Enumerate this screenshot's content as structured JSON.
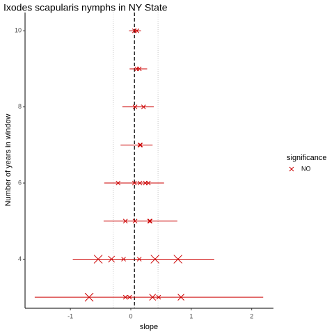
{
  "chart_data": {
    "type": "scatter",
    "title": "Ixodes scapularis nymphs in NY State",
    "x_label": "slope",
    "y_label": "Number of years in window",
    "legend_title": "significance",
    "legend_position": "right",
    "series": [
      {
        "name": "NO",
        "color": "#cc0000",
        "x": [
          0.06,
          0.1,
          0.1,
          0.14,
          0.07,
          0.21,
          0.15,
          0.16,
          -0.21,
          0.06,
          0.15,
          0.24,
          0.29,
          -0.09,
          0.07,
          0.31,
          0.32,
          -0.54,
          -0.32,
          -0.12,
          0.14,
          0.4,
          0.78,
          -0.69,
          -0.09,
          -0.02,
          0.36,
          0.46,
          0.83
        ],
        "values": [
          10,
          10,
          9,
          9,
          8,
          8,
          7,
          7,
          6,
          6,
          6,
          6,
          6,
          5,
          5,
          5,
          5,
          4,
          4,
          4,
          4,
          4,
          4,
          3,
          3,
          3,
          3,
          3,
          3
        ],
        "sizes": [
          1,
          1,
          1,
          1,
          1,
          1,
          1,
          1,
          1,
          1,
          1,
          1,
          1,
          1,
          1,
          1,
          1,
          3,
          2,
          1,
          1,
          3,
          3,
          3,
          1,
          1,
          2,
          1,
          2
        ]
      }
    ],
    "error_bars": {
      "y": [
        10,
        9,
        8,
        7,
        6,
        5,
        4,
        3
      ],
      "xmin": [
        -0.03,
        -0.02,
        -0.14,
        -0.17,
        -0.44,
        -0.45,
        -0.96,
        -1.59
      ],
      "xmax": [
        0.17,
        0.27,
        0.38,
        0.36,
        0.55,
        0.77,
        1.38,
        2.19
      ]
    },
    "reference_lines": [
      {
        "value": 0.06,
        "style": "dashed"
      },
      {
        "value": -0.29,
        "style": "dotted"
      },
      {
        "value": 0.45,
        "style": "dotted"
      }
    ],
    "xlim": [
      -1.75,
      2.36
    ],
    "ylim": [
      2.71,
      10.48
    ],
    "xticks": [
      -1,
      0,
      1,
      2
    ],
    "yticks": [
      4,
      6,
      8,
      10
    ],
    "grid": false
  }
}
